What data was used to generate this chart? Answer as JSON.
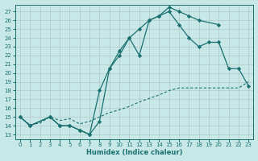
{
  "xlabel": "Humidex (Indice chaleur)",
  "background_color": "#c8e8e8",
  "grid_color": "#b0c8c8",
  "line_color": "#1a7070",
  "xlim": [
    -0.5,
    23.5
  ],
  "ylim": [
    12.5,
    27.8
  ],
  "yticks": [
    13,
    14,
    15,
    16,
    17,
    18,
    19,
    20,
    21,
    22,
    23,
    24,
    25,
    26,
    27
  ],
  "xticks": [
    0,
    1,
    2,
    3,
    4,
    5,
    6,
    7,
    8,
    9,
    10,
    11,
    12,
    13,
    14,
    15,
    16,
    17,
    18,
    19,
    20,
    21,
    22,
    23
  ],
  "curve1_x": [
    0,
    1,
    3,
    4,
    5,
    6,
    7,
    8,
    9,
    10,
    11,
    12,
    13,
    14,
    15,
    16,
    17,
    18,
    20
  ],
  "curve1_y": [
    15,
    14,
    15,
    14,
    14,
    13.5,
    13,
    18,
    20.5,
    22.5,
    24,
    25,
    26,
    26.5,
    27.5,
    27,
    26.5,
    26,
    25.5
  ],
  "curve2_x": [
    0,
    1,
    3,
    4,
    5,
    6,
    7,
    8,
    9,
    10,
    11,
    12,
    13,
    14,
    15,
    16,
    17,
    18,
    19,
    20,
    21,
    22,
    23
  ],
  "curve2_y": [
    15,
    14,
    15,
    14,
    14,
    13.5,
    13,
    14.5,
    20.5,
    22,
    24,
    22,
    26,
    26.5,
    27,
    25.5,
    24,
    23,
    23.5,
    23.5,
    20.5,
    20.5,
    18.5
  ],
  "curve3_x": [
    0,
    1,
    2,
    3,
    4,
    5,
    6,
    7,
    8,
    9,
    10,
    11,
    12,
    13,
    14,
    15,
    16,
    17,
    18,
    19,
    20,
    21,
    22,
    23
  ],
  "curve3_y": [
    15,
    14.1,
    14.3,
    15,
    14.6,
    14.8,
    14.2,
    14.5,
    15,
    15.5,
    15.8,
    16.2,
    16.7,
    17.1,
    17.5,
    18,
    18.3,
    18.3,
    18.3,
    18.3,
    18.3,
    18.3,
    18.3,
    19
  ]
}
